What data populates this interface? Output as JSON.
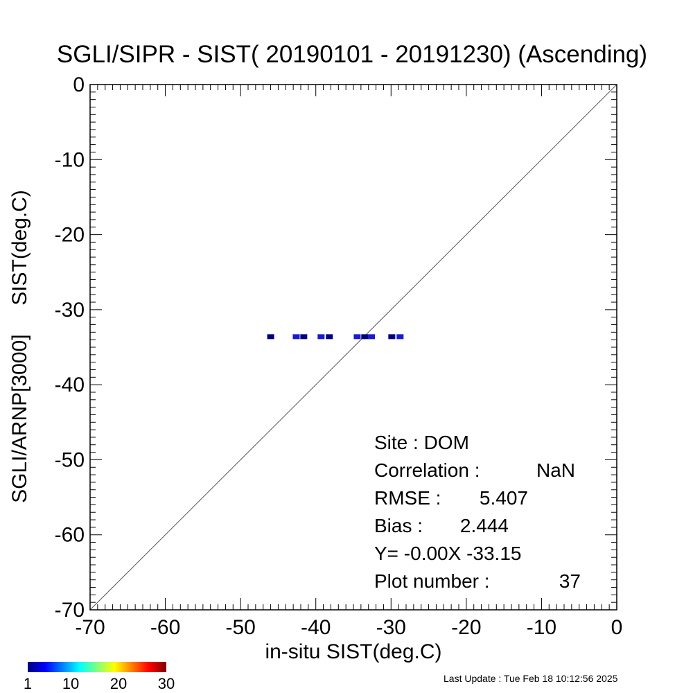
{
  "chart_data": {
    "type": "scatter",
    "title": "SGLI/SIPR - SIST( 20190101 - 20191230) (Ascending)",
    "xlabel": "in-situ SIST(deg.C)",
    "ylabel": "SGLI/ARNP[3000]     SIST(deg.C)",
    "xlim": [
      -70,
      0
    ],
    "ylim": [
      -70,
      0
    ],
    "xticks": [
      "-70",
      "-60",
      "-50",
      "-40",
      "-30",
      "-20",
      "-10",
      "0"
    ],
    "yticks": [
      "0",
      "-10",
      "-20",
      "-30",
      "-40",
      "-50",
      "-60",
      "-70"
    ],
    "xtick_values": [
      -70,
      -60,
      -50,
      -40,
      -30,
      -20,
      -10,
      0
    ],
    "ytick_values": [
      0,
      -10,
      -20,
      -30,
      -40,
      -50,
      -60,
      -70
    ],
    "reference_line": {
      "type": "1:1",
      "from": [
        -70,
        -70
      ],
      "to": [
        0,
        0
      ],
      "color": "#555555"
    },
    "points": [
      {
        "x": -46.0,
        "y": -33.6,
        "count": 1
      },
      {
        "x": -42.6,
        "y": -33.6,
        "count": 1
      },
      {
        "x": -41.6,
        "y": -33.6,
        "count": 1
      },
      {
        "x": -39.3,
        "y": -33.6,
        "count": 1
      },
      {
        "x": -38.2,
        "y": -33.6,
        "count": 1
      },
      {
        "x": -34.5,
        "y": -33.6,
        "count": 1
      },
      {
        "x": -33.5,
        "y": -33.6,
        "count": 1
      },
      {
        "x": -32.6,
        "y": -33.6,
        "count": 1
      },
      {
        "x": -29.9,
        "y": -33.6,
        "count": 1
      },
      {
        "x": -28.8,
        "y": -33.6,
        "count": 1
      }
    ],
    "point_colors": [
      "#00007f",
      "#1a1acc"
    ],
    "grid": false,
    "stats": [
      {
        "label": "Site : DOM",
        "value": ""
      },
      {
        "label": "Correlation :",
        "value": "NaN"
      },
      {
        "label": "RMSE :",
        "value": "5.407"
      },
      {
        "label": "Bias :",
        "value": "2.444"
      },
      {
        "label": "Y=  -0.00X -33.15",
        "value": ""
      },
      {
        "label": "Plot number :",
        "value": "37"
      }
    ],
    "colorbar": {
      "ticks": [
        "1",
        "10",
        "20",
        "30"
      ],
      "tick_values": [
        1,
        10,
        20,
        30
      ],
      "range": [
        1,
        30
      ],
      "colormap": "jet"
    }
  },
  "footer": {
    "last_update": "Last Update : Tue Feb 18 10:12:56 2025"
  }
}
